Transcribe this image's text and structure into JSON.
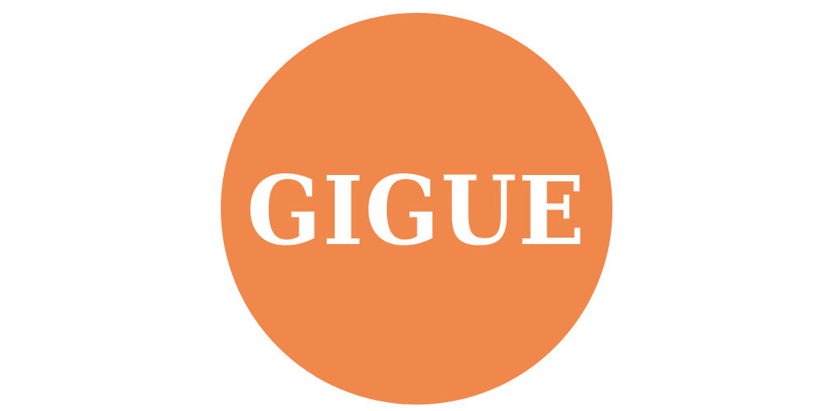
{
  "logo": {
    "text": "GIGUE",
    "circle_color": "#F0874B",
    "text_color": "#FFFFFF",
    "background_color": "#FFFFFF"
  }
}
